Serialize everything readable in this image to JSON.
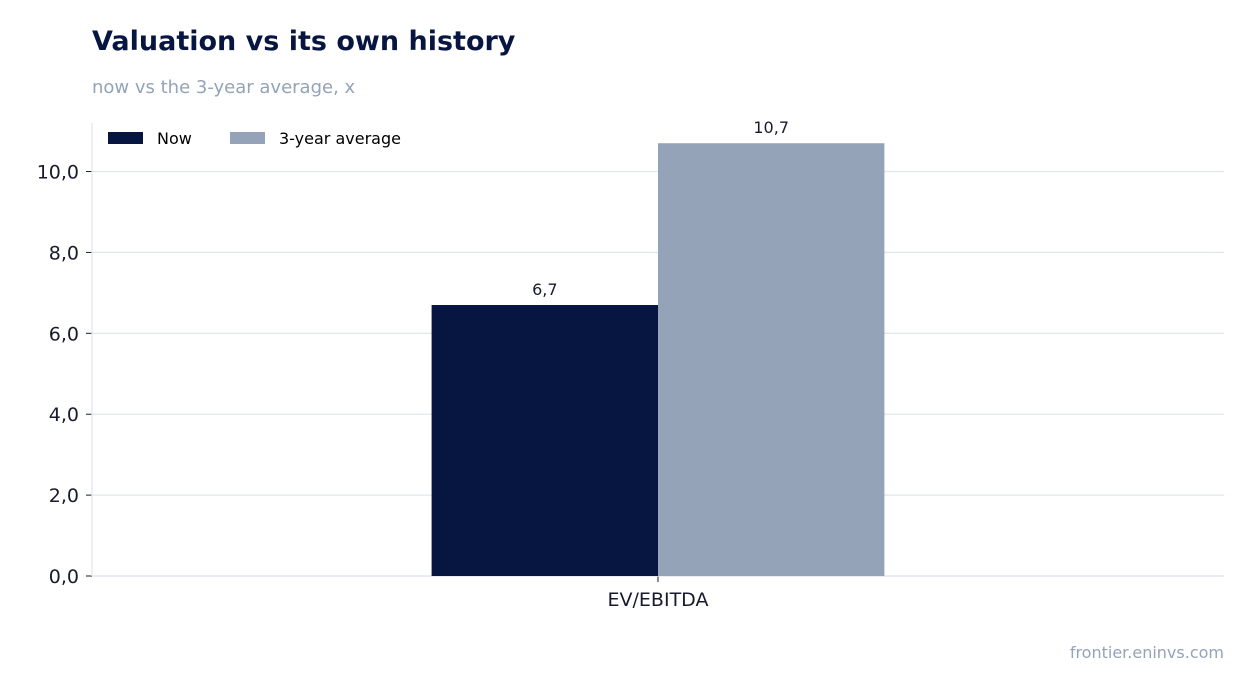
{
  "header": {
    "title": "Valuation vs its own history",
    "subtitle": "now vs the 3-year average, x"
  },
  "footer": {
    "source": "frontier.eninvs.com"
  },
  "colors": {
    "now": "#071640",
    "average": "#94a3b8",
    "grid": "#e2e6ee",
    "axis": "#e2e6ee",
    "text": "#1a1a2e"
  },
  "chart_data": {
    "type": "bar",
    "categories": [
      "EV/EBITDA"
    ],
    "series": [
      {
        "name": "Now",
        "values": [
          6.7
        ],
        "value_labels": [
          "6,7"
        ],
        "color": "#071640"
      },
      {
        "name": "3-year average",
        "values": [
          10.7
        ],
        "value_labels": [
          "10,7"
        ],
        "color": "#94a3b8"
      }
    ],
    "title": "Valuation vs its own history",
    "subtitle": "now vs the 3-year average, x",
    "xlabel": "",
    "ylabel": "",
    "ylim": [
      0,
      11.2
    ],
    "yticks": [
      0,
      2,
      4,
      6,
      8,
      10
    ],
    "ytick_labels": [
      "0,0",
      "2,0",
      "4,0",
      "6,0",
      "8,0",
      "10,0"
    ],
    "grid": true,
    "legend_position": "top-left"
  }
}
